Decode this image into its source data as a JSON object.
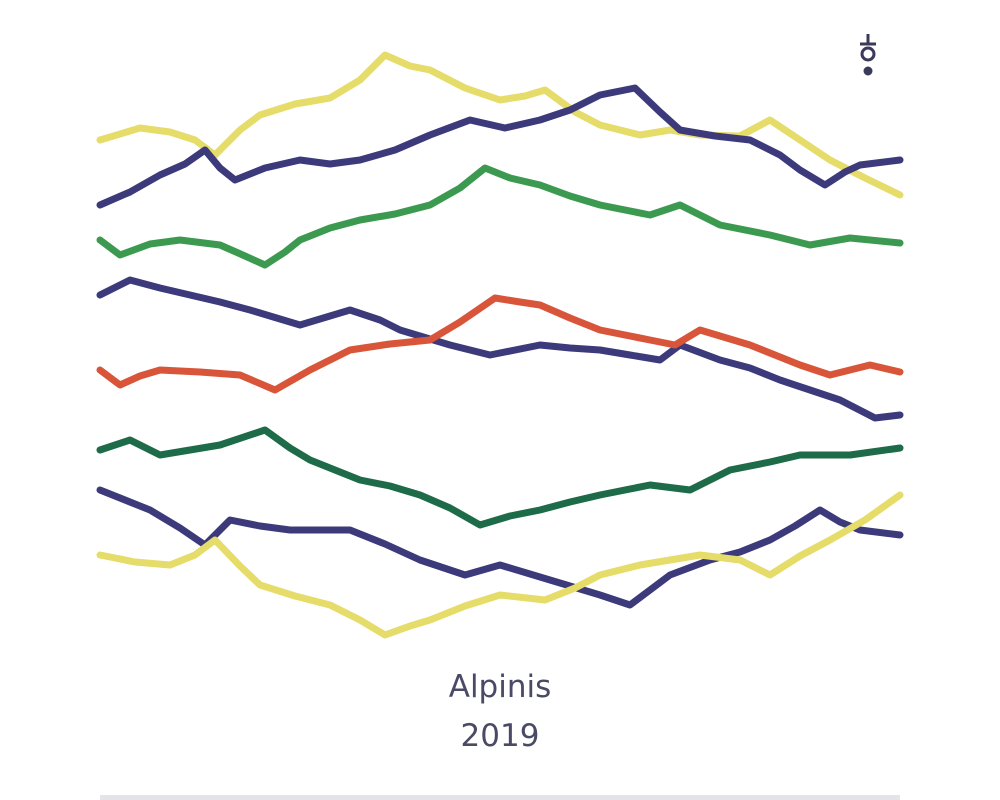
{
  "title": "Alpinis",
  "year": "2019"
}
